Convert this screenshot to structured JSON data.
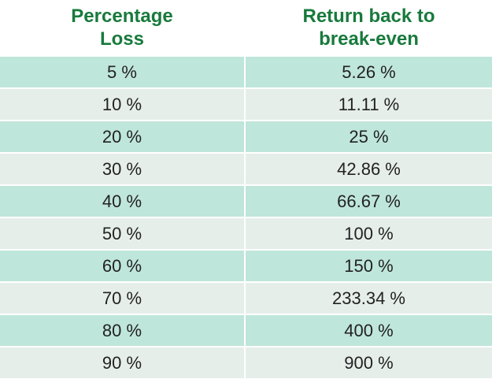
{
  "table": {
    "header": [
      "Percentage Loss",
      "Return back to break-even"
    ],
    "rows": [
      [
        "5 %",
        "5.26 %"
      ],
      [
        "10 %",
        "11.11 %"
      ],
      [
        "20 %",
        "25 %"
      ],
      [
        "30 %",
        "42.86 %"
      ],
      [
        "40 %",
        "66.67 %"
      ],
      [
        "50 %",
        "100 %"
      ],
      [
        "60 %",
        "150 %"
      ],
      [
        "70 %",
        "233.34 %"
      ],
      [
        "80 %",
        "400 %"
      ],
      [
        "90 %",
        "900 %"
      ]
    ]
  }
}
